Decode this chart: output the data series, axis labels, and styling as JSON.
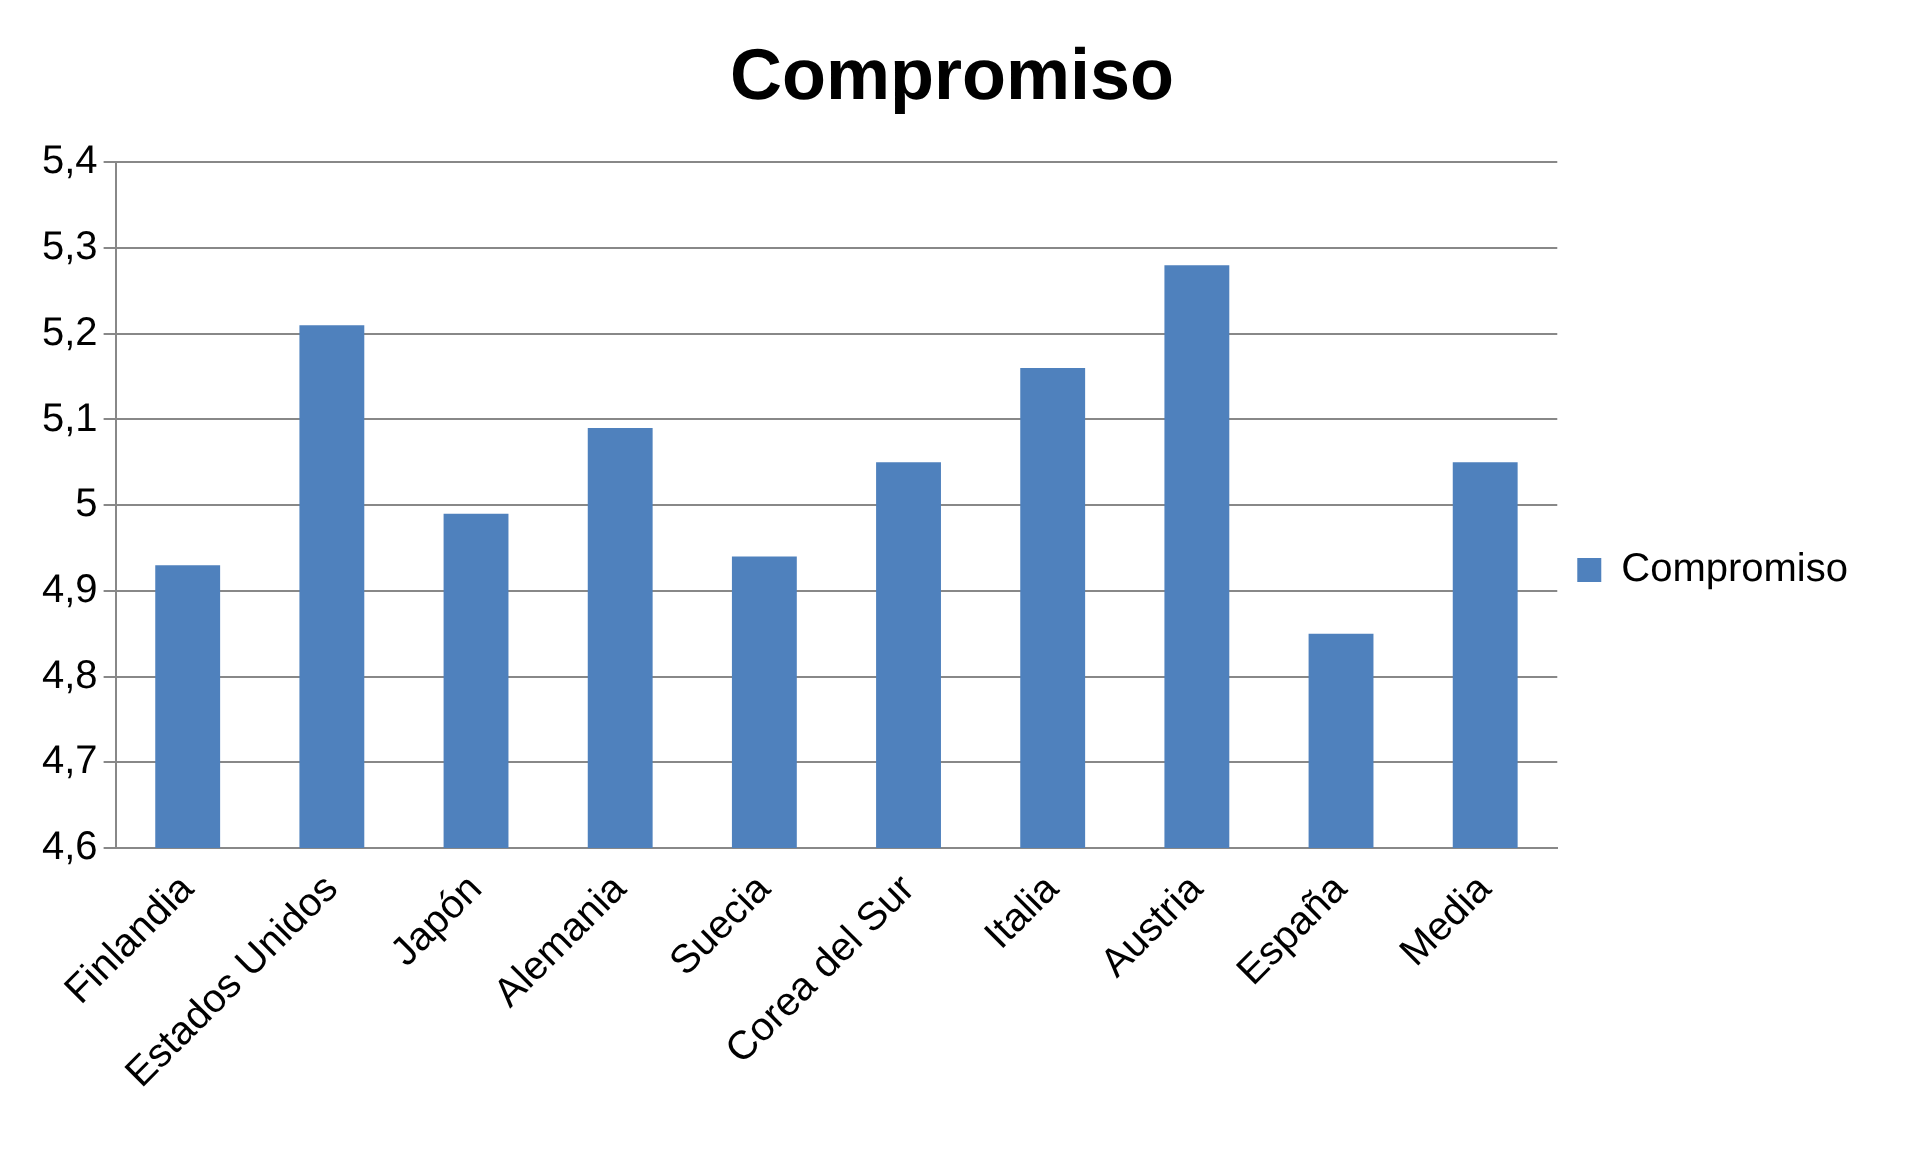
{
  "chart_data": {
    "type": "bar",
    "title": "Compromiso",
    "categories": [
      "Finlandia",
      "Estados Unidos",
      "Japón",
      "Alemania",
      "Suecia",
      "Corea del Sur",
      "Italia",
      "Austria",
      "España",
      "Media"
    ],
    "series": [
      {
        "name": "Compromiso",
        "color": "#4f81bd",
        "values": [
          4.93,
          5.21,
          4.99,
          5.09,
          4.94,
          5.05,
          5.16,
          5.28,
          4.85,
          5.05
        ]
      }
    ],
    "ylim": [
      4.6,
      5.4
    ],
    "yticks": [
      {
        "value": 4.6,
        "label": "4,6"
      },
      {
        "value": 4.7,
        "label": "4,7"
      },
      {
        "value": 4.8,
        "label": "4,8"
      },
      {
        "value": 4.9,
        "label": "4,9"
      },
      5,
      {
        "value": 5.1,
        "label": "5,1"
      },
      {
        "value": 5.2,
        "label": "5,2"
      },
      {
        "value": 5.3,
        "label": "5,3"
      },
      {
        "value": 5.4,
        "label": "5,4"
      }
    ],
    "grid": "y",
    "legend": "right"
  }
}
